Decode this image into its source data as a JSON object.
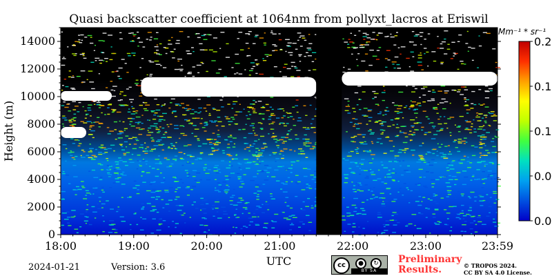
{
  "chart_data": {
    "type": "heatmap",
    "title": "Quasi backscatter coefficient at 1064nm from pollyxt_lacros at Eriswil",
    "xlabel": "UTC",
    "ylabel": "Height (m)",
    "x_ticks": [
      "18:00",
      "19:00",
      "20:00",
      "21:00",
      "22:00",
      "23:00",
      "23:59"
    ],
    "x_tick_hours": [
      18,
      19,
      20,
      21,
      22,
      23,
      23.983
    ],
    "xlim_hours": [
      18,
      23.983
    ],
    "y_ticks": [
      0,
      2000,
      4000,
      6000,
      8000,
      10000,
      12000,
      14000
    ],
    "ylim": [
      0,
      15000
    ],
    "colorbar": {
      "unit_label": "Mm⁻¹ * sr⁻¹",
      "range": [
        0,
        0.2
      ],
      "tick_values": [
        0,
        0.05,
        0.1,
        0.15,
        0.2
      ],
      "tick_labels": [
        "0.0",
        "0.0",
        "0.1",
        "0.1",
        "0.2"
      ],
      "colormap": [
        "#0000c8",
        "#0050e0",
        "#00a0f0",
        "#00e0c0",
        "#40ff40",
        "#c0ff00",
        "#ffff00",
        "#ffa000",
        "#ff3000",
        "#c00000"
      ]
    },
    "no_data_interval_hours": [
      21.5,
      21.85
    ],
    "cloud_layers": [
      {
        "start_hour": 18.0,
        "end_hour": 18.7,
        "bottom_m": 9700,
        "top_m": 10400
      },
      {
        "start_hour": 18.0,
        "end_hour": 18.35,
        "bottom_m": 7000,
        "top_m": 7800
      },
      {
        "start_hour": 19.1,
        "end_hour": 21.5,
        "bottom_m": 10000,
        "top_m": 11400
      },
      {
        "start_hour": 21.85,
        "end_hour": 23.983,
        "bottom_m": 10800,
        "top_m": 11800
      }
    ],
    "profile_description": {
      "background_saturated_below_m": 1500,
      "noisy_signal_above_m": 6000,
      "no_signal_black_above_m": 11500
    }
  },
  "footer": {
    "date": "2024-01-21",
    "version": "Version: 3.6",
    "preliminary": "Preliminary\nResults.",
    "copyright_line1": "© TROPOS 2024.",
    "copyright_line2": "CC BY SA 4.0 License.",
    "license_badge": {
      "cc": "cc",
      "strip": "BY   SA"
    }
  }
}
